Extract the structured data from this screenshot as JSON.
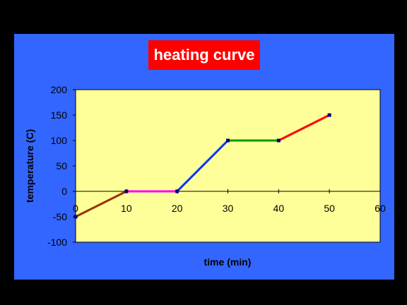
{
  "title": "heating curve",
  "colors": {
    "background": "#000000",
    "slide": "#3366FF",
    "plot_area": "#FFFF99",
    "title_box": "#FF0000",
    "title_text": "#FFFFFF",
    "marker": "#000080"
  },
  "chart_data": {
    "type": "line",
    "title": "heating curve",
    "xlabel": "time (min)",
    "ylabel": "temperature (C)",
    "xlim": [
      0,
      60
    ],
    "ylim": [
      -100,
      200
    ],
    "x_ticks": [
      0,
      10,
      20,
      30,
      40,
      50,
      60
    ],
    "y_ticks": [
      -100,
      -50,
      0,
      50,
      100,
      150,
      200
    ],
    "x_tick_labels": [
      "0",
      "10",
      "20",
      "30",
      "40",
      "50",
      "60"
    ],
    "y_tick_labels": [
      "-100",
      "-50",
      "0",
      "50",
      "100",
      "150",
      "200"
    ],
    "grid": false,
    "legend": "none",
    "segments": [
      {
        "color": "#993300",
        "x": [
          0,
          10
        ],
        "y": [
          -50,
          0
        ]
      },
      {
        "color": "#FF00FF",
        "x": [
          10,
          20
        ],
        "y": [
          0,
          0
        ]
      },
      {
        "color": "#0033FF",
        "x": [
          20,
          30
        ],
        "y": [
          0,
          100
        ]
      },
      {
        "color": "#009900",
        "x": [
          30,
          40
        ],
        "y": [
          100,
          100
        ]
      },
      {
        "color": "#FF0000",
        "x": [
          40,
          50
        ],
        "y": [
          100,
          150
        ]
      }
    ],
    "points": {
      "x": [
        0,
        10,
        20,
        30,
        40,
        50
      ],
      "y": [
        -50,
        0,
        0,
        100,
        100,
        150
      ]
    }
  }
}
